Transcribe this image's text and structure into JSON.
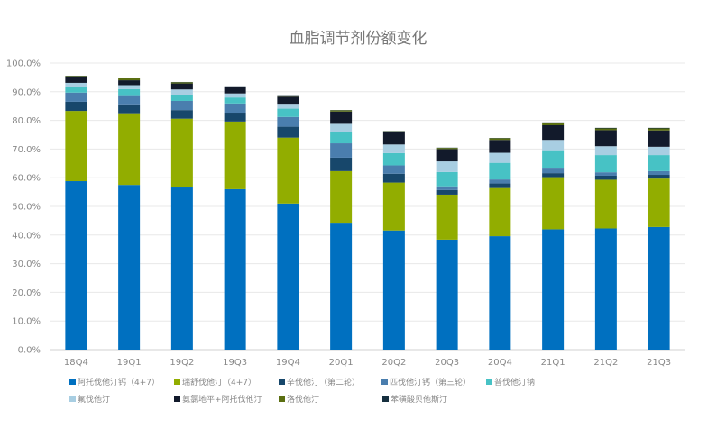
{
  "chart_data": {
    "type": "bar",
    "stacked": true,
    "title": "血脂调节剂份额变化",
    "xlabel": "",
    "ylabel": "",
    "ylim": [
      0,
      100
    ],
    "y_ticks": [
      "0.0%",
      "10.0%",
      "20.0%",
      "30.0%",
      "40.0%",
      "50.0%",
      "60.0%",
      "70.0%",
      "80.0%",
      "90.0%",
      "100.0%"
    ],
    "grid": true,
    "legend_position": "bottom",
    "categories": [
      "18Q4",
      "19Q1",
      "19Q2",
      "19Q3",
      "19Q4",
      "20Q1",
      "20Q2",
      "20Q3",
      "20Q4",
      "21Q1",
      "21Q2",
      "21Q3"
    ],
    "series": [
      {
        "name": "阿托伐他汀钙（4+7）",
        "color": "#0070c0",
        "values": [
          58.8,
          57.5,
          56.6,
          56.0,
          51.0,
          44.0,
          41.6,
          38.4,
          39.6,
          42.0,
          42.3,
          42.8
        ]
      },
      {
        "name": "瑞舒伐他汀（4+7）",
        "color": "#92ad00",
        "values": [
          24.5,
          25.0,
          24.0,
          23.6,
          23.0,
          18.3,
          16.7,
          15.7,
          16.8,
          18.2,
          17.0,
          16.9
        ]
      },
      {
        "name": "辛伐他汀（第二轮）",
        "color": "#17476b",
        "values": [
          3.2,
          3.1,
          3.0,
          3.1,
          3.8,
          4.7,
          3.1,
          1.6,
          1.6,
          1.4,
          1.4,
          1.3
        ]
      },
      {
        "name": "匹伐他汀钙（第三轮）",
        "color": "#4a7eae",
        "values": [
          3.2,
          3.2,
          3.2,
          3.2,
          3.4,
          5.0,
          2.9,
          1.3,
          1.4,
          1.9,
          1.2,
          1.3
        ]
      },
      {
        "name": "普伐他汀钠",
        "color": "#47c2c5",
        "values": [
          2.0,
          2.1,
          2.2,
          2.1,
          2.9,
          4.1,
          4.3,
          5.0,
          5.8,
          6.1,
          6.0,
          5.6
        ]
      },
      {
        "name": "氟伐他汀",
        "color": "#a8cee2",
        "values": [
          1.4,
          1.4,
          1.8,
          1.4,
          1.7,
          2.7,
          3.0,
          3.7,
          3.5,
          3.6,
          3.1,
          2.9
        ]
      },
      {
        "name": "氨氯地平+阿托伐他汀",
        "color": "#121a2b",
        "values": [
          2.2,
          1.7,
          2.1,
          2.2,
          2.5,
          4.3,
          4.3,
          4.3,
          4.5,
          5.1,
          5.6,
          5.7
        ]
      },
      {
        "name": "洛伐他汀",
        "color": "#5b6f12",
        "values": [
          0.2,
          0.7,
          0.4,
          0.2,
          0.4,
          0.4,
          0.3,
          0.4,
          0.6,
          0.9,
          0.6,
          0.7
        ]
      },
      {
        "name": "苯磺酸贝他斯汀",
        "color": "#16303f",
        "values": [
          0.1,
          0.1,
          0.1,
          0.1,
          0.1,
          0.1,
          0.1,
          0.1,
          0.1,
          0.1,
          0.2,
          0.2
        ]
      }
    ]
  }
}
